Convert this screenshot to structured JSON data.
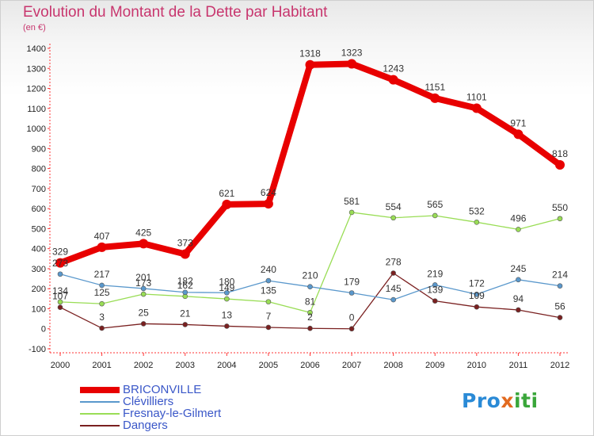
{
  "chart_data": {
    "type": "line",
    "title": "Evolution du Montant de la Dette par Habitant",
    "subtitle": "(en €)",
    "x": [
      "2000",
      "2001",
      "2002",
      "2003",
      "2004",
      "2005",
      "2006",
      "2007",
      "2008",
      "2009",
      "2010",
      "2011",
      "2012"
    ],
    "ylim": [
      -100,
      1400
    ],
    "yticks": [
      -100,
      0,
      100,
      200,
      300,
      400,
      500,
      600,
      700,
      800,
      900,
      1000,
      1100,
      1200,
      1300,
      1400
    ],
    "grid": false,
    "legend_position": "bottom-left",
    "series": [
      {
        "name": "BRICONVILLE",
        "color": "#e80000",
        "width": 8,
        "marker": 6,
        "values": [
          329,
          407,
          425,
          373,
          621,
          624,
          1318,
          1323,
          1243,
          1151,
          1101,
          971,
          818
        ],
        "labels": [
          "329",
          "407",
          "425",
          "373",
          "621",
          "624",
          "1318",
          "1323",
          "1243",
          "1151",
          "1101",
          "971",
          "818"
        ]
      },
      {
        "name": "Clévilliers",
        "color": "#5a98cc",
        "width": 1.3,
        "marker": 3,
        "values": [
          273,
          217,
          201,
          182,
          180,
          240,
          210,
          179,
          145,
          219,
          172,
          245,
          214
        ],
        "labels": [
          "273",
          "217",
          "201",
          "182",
          "180",
          "240",
          "210",
          "179",
          "145",
          "219",
          "172",
          "245",
          "214"
        ]
      },
      {
        "name": "Fresnay-le-Gilmert",
        "color": "#99dd55",
        "width": 1.3,
        "marker": 3,
        "values": [
          134,
          125,
          173,
          162,
          149,
          135,
          81,
          581,
          554,
          565,
          532,
          496,
          550
        ],
        "labels": [
          "134",
          "125",
          "173",
          "162",
          "149",
          "135",
          "81",
          "581",
          "554",
          "565",
          "532",
          "496",
          "550"
        ]
      },
      {
        "name": "Dangers",
        "color": "#7a2020",
        "width": 1.3,
        "marker": 3,
        "values": [
          107,
          3,
          25,
          21,
          13,
          7,
          2,
          0,
          278,
          139,
          109,
          94,
          56
        ],
        "labels": [
          "107",
          "3",
          "25",
          "21",
          "13",
          "7",
          "2",
          "0",
          "278",
          "139",
          "109",
          "94",
          "56"
        ]
      }
    ]
  },
  "logo": {
    "p1": "Pro",
    "p2": "x",
    "p3": "iti"
  }
}
